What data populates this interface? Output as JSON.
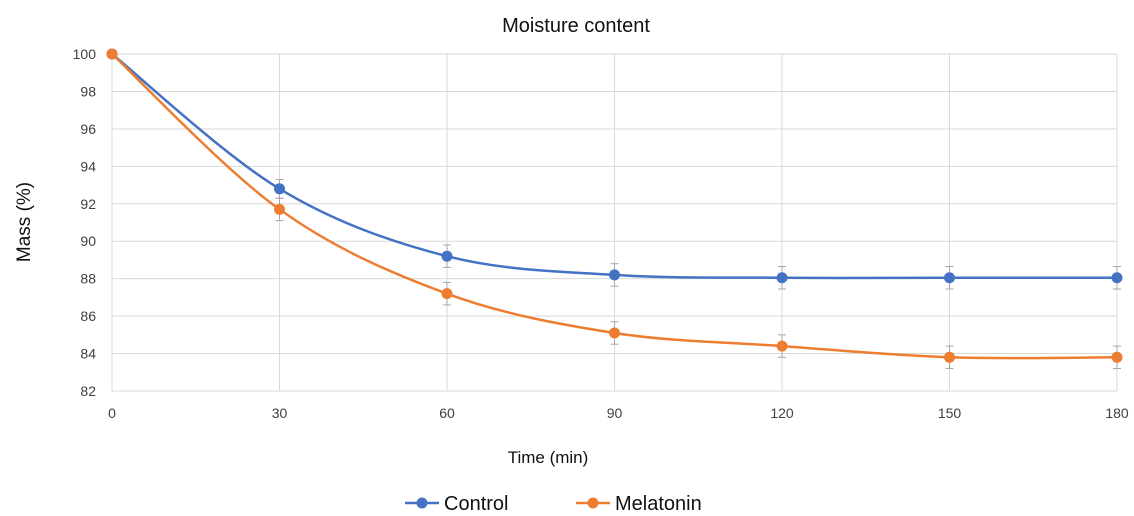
{
  "chart_data": {
    "type": "line",
    "title": "Moisture content",
    "xlabel": "Time (min)",
    "ylabel": "Mass  (%)",
    "x": [
      0,
      30,
      60,
      90,
      120,
      150,
      180
    ],
    "xticks": [
      "0",
      "30",
      "60",
      "90",
      "120",
      "150",
      "180"
    ],
    "yticks": [
      "82",
      "84",
      "86",
      "88",
      "90",
      "92",
      "94",
      "96",
      "98",
      "100"
    ],
    "xlim": [
      0,
      180
    ],
    "ylim": [
      82,
      100
    ],
    "grid": true,
    "legend_position": "bottom",
    "series": [
      {
        "name": "Control",
        "color": "#4472c4",
        "values": [
          100,
          92.8,
          89.2,
          88.2,
          88.05,
          88.05,
          88.05
        ],
        "errors": [
          0,
          0.5,
          0.6,
          0.6,
          0.6,
          0.6,
          0.6
        ]
      },
      {
        "name": "Melatonin",
        "color": "#ed7d31",
        "values": [
          100,
          91.7,
          87.2,
          85.1,
          84.4,
          83.8,
          83.8
        ],
        "errors": [
          0,
          0.6,
          0.6,
          0.6,
          0.6,
          0.6,
          0.6
        ]
      }
    ]
  }
}
